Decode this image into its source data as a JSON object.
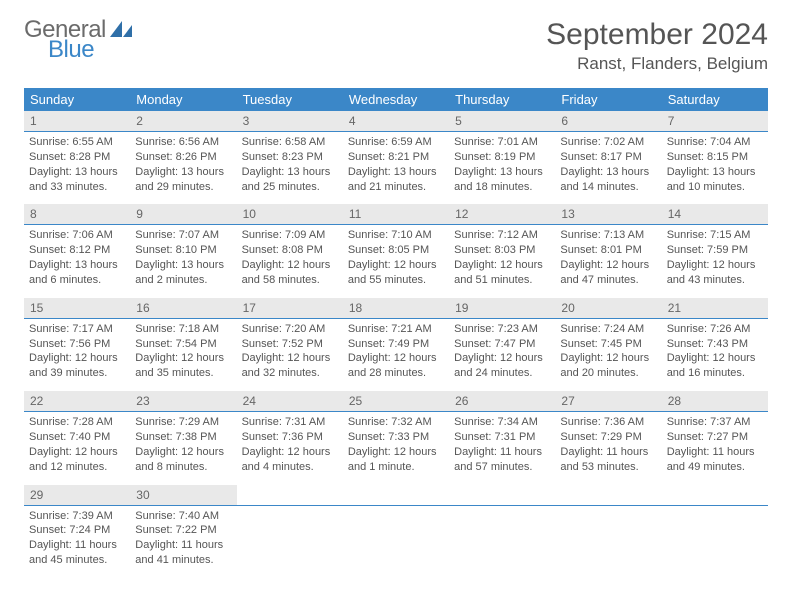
{
  "logo": {
    "text1": "General",
    "text2": "Blue",
    "icon_color": "#2f6fa8"
  },
  "title": "September 2024",
  "location": "Ranst, Flanders, Belgium",
  "header_bg": "#3b87c8",
  "daynum_bg": "#e9e9e9",
  "divider_color": "#3b87c8",
  "day_headers": [
    "Sunday",
    "Monday",
    "Tuesday",
    "Wednesday",
    "Thursday",
    "Friday",
    "Saturday"
  ],
  "weeks": [
    [
      {
        "n": "1",
        "sunrise": "Sunrise: 6:55 AM",
        "sunset": "Sunset: 8:28 PM",
        "d1": "Daylight: 13 hours",
        "d2": "and 33 minutes."
      },
      {
        "n": "2",
        "sunrise": "Sunrise: 6:56 AM",
        "sunset": "Sunset: 8:26 PM",
        "d1": "Daylight: 13 hours",
        "d2": "and 29 minutes."
      },
      {
        "n": "3",
        "sunrise": "Sunrise: 6:58 AM",
        "sunset": "Sunset: 8:23 PM",
        "d1": "Daylight: 13 hours",
        "d2": "and 25 minutes."
      },
      {
        "n": "4",
        "sunrise": "Sunrise: 6:59 AM",
        "sunset": "Sunset: 8:21 PM",
        "d1": "Daylight: 13 hours",
        "d2": "and 21 minutes."
      },
      {
        "n": "5",
        "sunrise": "Sunrise: 7:01 AM",
        "sunset": "Sunset: 8:19 PM",
        "d1": "Daylight: 13 hours",
        "d2": "and 18 minutes."
      },
      {
        "n": "6",
        "sunrise": "Sunrise: 7:02 AM",
        "sunset": "Sunset: 8:17 PM",
        "d1": "Daylight: 13 hours",
        "d2": "and 14 minutes."
      },
      {
        "n": "7",
        "sunrise": "Sunrise: 7:04 AM",
        "sunset": "Sunset: 8:15 PM",
        "d1": "Daylight: 13 hours",
        "d2": "and 10 minutes."
      }
    ],
    [
      {
        "n": "8",
        "sunrise": "Sunrise: 7:06 AM",
        "sunset": "Sunset: 8:12 PM",
        "d1": "Daylight: 13 hours",
        "d2": "and 6 minutes."
      },
      {
        "n": "9",
        "sunrise": "Sunrise: 7:07 AM",
        "sunset": "Sunset: 8:10 PM",
        "d1": "Daylight: 13 hours",
        "d2": "and 2 minutes."
      },
      {
        "n": "10",
        "sunrise": "Sunrise: 7:09 AM",
        "sunset": "Sunset: 8:08 PM",
        "d1": "Daylight: 12 hours",
        "d2": "and 58 minutes."
      },
      {
        "n": "11",
        "sunrise": "Sunrise: 7:10 AM",
        "sunset": "Sunset: 8:05 PM",
        "d1": "Daylight: 12 hours",
        "d2": "and 55 minutes."
      },
      {
        "n": "12",
        "sunrise": "Sunrise: 7:12 AM",
        "sunset": "Sunset: 8:03 PM",
        "d1": "Daylight: 12 hours",
        "d2": "and 51 minutes."
      },
      {
        "n": "13",
        "sunrise": "Sunrise: 7:13 AM",
        "sunset": "Sunset: 8:01 PM",
        "d1": "Daylight: 12 hours",
        "d2": "and 47 minutes."
      },
      {
        "n": "14",
        "sunrise": "Sunrise: 7:15 AM",
        "sunset": "Sunset: 7:59 PM",
        "d1": "Daylight: 12 hours",
        "d2": "and 43 minutes."
      }
    ],
    [
      {
        "n": "15",
        "sunrise": "Sunrise: 7:17 AM",
        "sunset": "Sunset: 7:56 PM",
        "d1": "Daylight: 12 hours",
        "d2": "and 39 minutes."
      },
      {
        "n": "16",
        "sunrise": "Sunrise: 7:18 AM",
        "sunset": "Sunset: 7:54 PM",
        "d1": "Daylight: 12 hours",
        "d2": "and 35 minutes."
      },
      {
        "n": "17",
        "sunrise": "Sunrise: 7:20 AM",
        "sunset": "Sunset: 7:52 PM",
        "d1": "Daylight: 12 hours",
        "d2": "and 32 minutes."
      },
      {
        "n": "18",
        "sunrise": "Sunrise: 7:21 AM",
        "sunset": "Sunset: 7:49 PM",
        "d1": "Daylight: 12 hours",
        "d2": "and 28 minutes."
      },
      {
        "n": "19",
        "sunrise": "Sunrise: 7:23 AM",
        "sunset": "Sunset: 7:47 PM",
        "d1": "Daylight: 12 hours",
        "d2": "and 24 minutes."
      },
      {
        "n": "20",
        "sunrise": "Sunrise: 7:24 AM",
        "sunset": "Sunset: 7:45 PM",
        "d1": "Daylight: 12 hours",
        "d2": "and 20 minutes."
      },
      {
        "n": "21",
        "sunrise": "Sunrise: 7:26 AM",
        "sunset": "Sunset: 7:43 PM",
        "d1": "Daylight: 12 hours",
        "d2": "and 16 minutes."
      }
    ],
    [
      {
        "n": "22",
        "sunrise": "Sunrise: 7:28 AM",
        "sunset": "Sunset: 7:40 PM",
        "d1": "Daylight: 12 hours",
        "d2": "and 12 minutes."
      },
      {
        "n": "23",
        "sunrise": "Sunrise: 7:29 AM",
        "sunset": "Sunset: 7:38 PM",
        "d1": "Daylight: 12 hours",
        "d2": "and 8 minutes."
      },
      {
        "n": "24",
        "sunrise": "Sunrise: 7:31 AM",
        "sunset": "Sunset: 7:36 PM",
        "d1": "Daylight: 12 hours",
        "d2": "and 4 minutes."
      },
      {
        "n": "25",
        "sunrise": "Sunrise: 7:32 AM",
        "sunset": "Sunset: 7:33 PM",
        "d1": "Daylight: 12 hours",
        "d2": "and 1 minute."
      },
      {
        "n": "26",
        "sunrise": "Sunrise: 7:34 AM",
        "sunset": "Sunset: 7:31 PM",
        "d1": "Daylight: 11 hours",
        "d2": "and 57 minutes."
      },
      {
        "n": "27",
        "sunrise": "Sunrise: 7:36 AM",
        "sunset": "Sunset: 7:29 PM",
        "d1": "Daylight: 11 hours",
        "d2": "and 53 minutes."
      },
      {
        "n": "28",
        "sunrise": "Sunrise: 7:37 AM",
        "sunset": "Sunset: 7:27 PM",
        "d1": "Daylight: 11 hours",
        "d2": "and 49 minutes."
      }
    ],
    [
      {
        "n": "29",
        "sunrise": "Sunrise: 7:39 AM",
        "sunset": "Sunset: 7:24 PM",
        "d1": "Daylight: 11 hours",
        "d2": "and 45 minutes."
      },
      {
        "n": "30",
        "sunrise": "Sunrise: 7:40 AM",
        "sunset": "Sunset: 7:22 PM",
        "d1": "Daylight: 11 hours",
        "d2": "and 41 minutes."
      },
      null,
      null,
      null,
      null,
      null
    ]
  ]
}
